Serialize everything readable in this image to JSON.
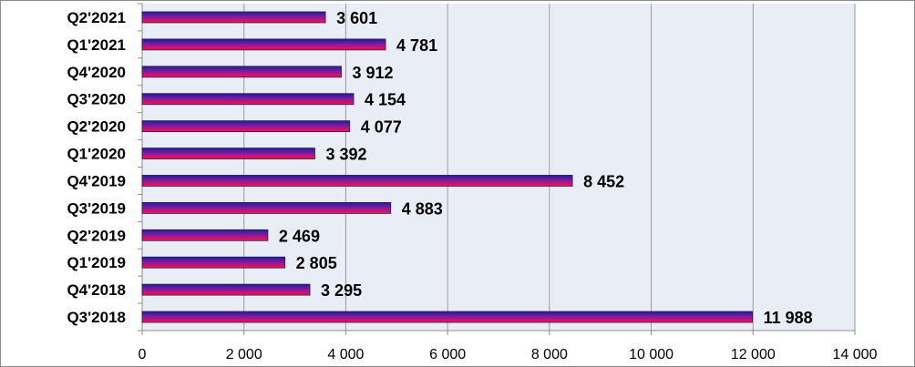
{
  "chart_data": {
    "type": "bar",
    "orientation": "horizontal",
    "categories": [
      "Q3'2018",
      "Q4'2018",
      "Q1'2019",
      "Q2'2019",
      "Q3'2019",
      "Q4'2019",
      "Q1'2020",
      "Q2'2020",
      "Q3'2020",
      "Q4'2020",
      "Q1'2021",
      "Q2'2021"
    ],
    "values": [
      11988,
      3295,
      2805,
      2469,
      4883,
      8452,
      3392,
      4077,
      4154,
      3912,
      4781,
      3601
    ],
    "value_labels": [
      "11 988",
      "3 295",
      "2 805",
      "2 469",
      "4 883",
      "8 452",
      "3 392",
      "4 077",
      "4 154",
      "3 912",
      "4 781",
      "3 601"
    ],
    "xlim": [
      0,
      14000
    ],
    "x_ticks": [
      0,
      2000,
      4000,
      6000,
      8000,
      10000,
      12000,
      14000
    ],
    "x_tick_labels": [
      "0",
      "2 000",
      "4 000",
      "6 000",
      "8 000",
      "10 000",
      "12 000",
      "14 000"
    ],
    "grid": "vertical",
    "legend": "none",
    "colors": {
      "plot_bg": "#e9edf6",
      "grid": "#9a9a9a",
      "bar_top": "#1e1e9a",
      "bar_bottom": "#ff1040",
      "bar_edge": "#2a1a5a"
    }
  }
}
